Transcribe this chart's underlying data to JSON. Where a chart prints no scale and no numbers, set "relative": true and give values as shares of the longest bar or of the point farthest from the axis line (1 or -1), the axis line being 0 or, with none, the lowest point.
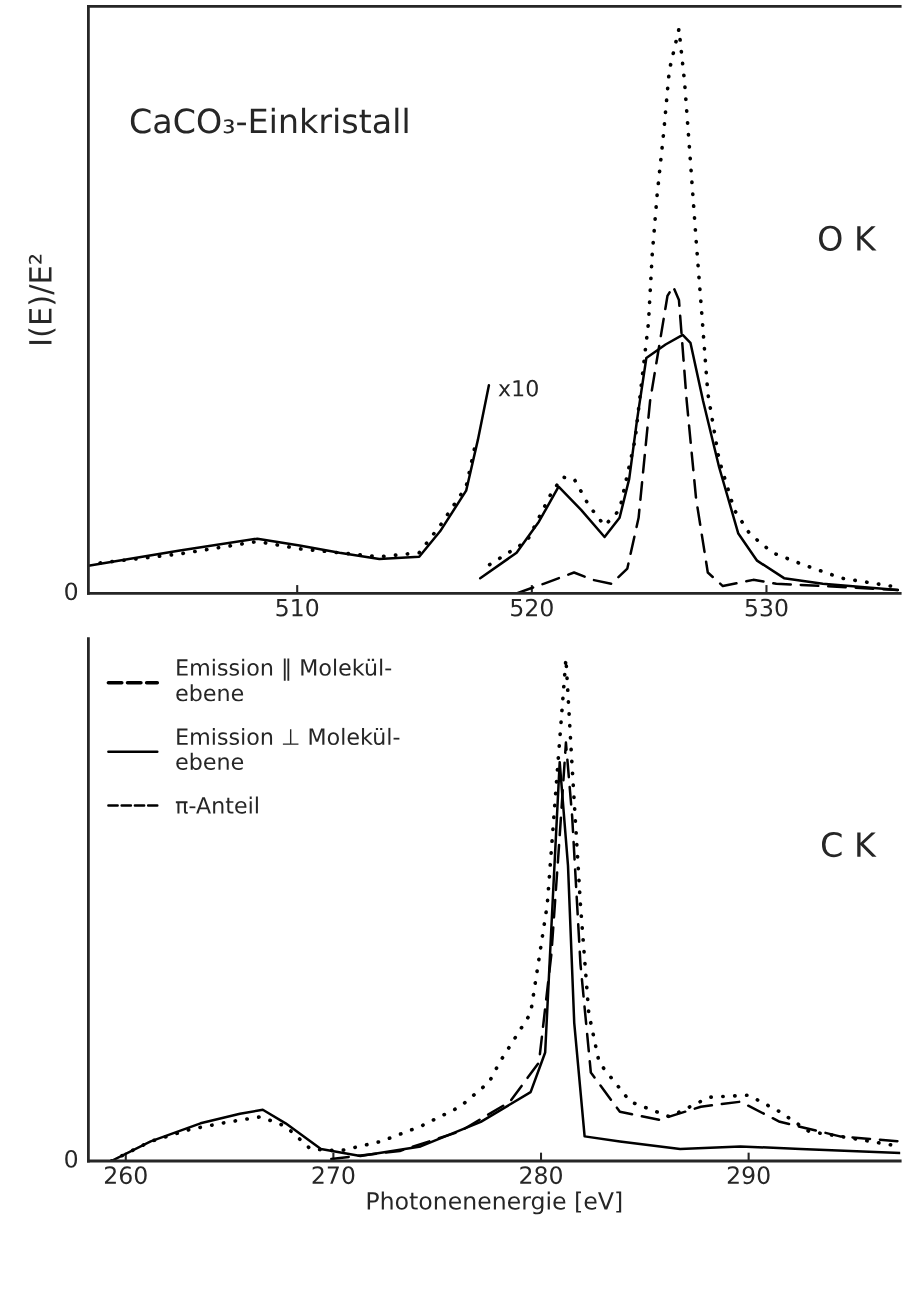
{
  "chart_data": [
    {
      "type": "line",
      "relative": true,
      "ylabel": "I(E)/E²",
      "xlim": [
        501.1,
        535.7
      ],
      "xticks": [
        510,
        520,
        530
      ],
      "grid": false,
      "legend": false,
      "annotations": [
        "CaCO₃-Einkristall",
        "O K",
        "0",
        {
          "text": "x10",
          "x": 518.2,
          "y": 0.36
        }
      ],
      "series": [
        {
          "color": "#000000",
          "line_style": "dotted",
          "x": [
            501.6,
            505.0,
            508.3,
            510.1,
            513.5,
            515.2,
            516.09,
            517.2,
            517.6
          ],
          "values": [
            0.054,
            0.07,
            0.092,
            0.079,
            0.065,
            0.072,
            0.12,
            0.189,
            0.265
          ]
        },
        {
          "color": "#000000",
          "line_style": "dotted",
          "x": [
            518.2,
            519.8,
            520.8,
            521.3,
            521.8,
            522.44,
            523.1,
            523.74,
            524.4,
            524.72,
            524.97,
            525.13,
            525.34,
            525.62,
            525.86,
            526.27,
            526.51,
            526.76,
            527.0,
            527.25,
            527.5,
            527.98,
            528.63,
            529.28,
            530.26,
            531.56,
            533.2,
            535.6
          ],
          "values": [
            0.051,
            0.093,
            0.175,
            0.206,
            0.203,
            0.155,
            0.12,
            0.148,
            0.272,
            0.389,
            0.479,
            0.6,
            0.706,
            0.817,
            0.927,
            1.0,
            0.906,
            0.765,
            0.627,
            0.492,
            0.355,
            0.237,
            0.148,
            0.106,
            0.072,
            0.051,
            0.027,
            0.011
          ]
        },
        {
          "color": "#000000",
          "line_style": "solid",
          "x": [
            501.1,
            505.0,
            508.3,
            510.1,
            511.8,
            513.5,
            515.2,
            516.09,
            517.2,
            517.7,
            518.17
          ],
          "values": [
            0.049,
            0.076,
            0.097,
            0.085,
            0.072,
            0.061,
            0.065,
            0.11,
            0.182,
            0.272,
            0.369
          ]
        },
        {
          "color": "#000000",
          "line_style": "solid",
          "x": [
            517.8,
            519.35,
            520.3,
            521.14,
            522.1,
            523.1,
            523.74,
            524.15,
            524.48,
            524.88,
            525.7,
            526.43,
            526.76,
            527.3,
            527.98,
            528.8,
            529.6,
            530.75,
            532.4,
            535.6
          ],
          "values": [
            0.027,
            0.072,
            0.127,
            0.189,
            0.148,
            0.1,
            0.134,
            0.203,
            0.306,
            0.417,
            0.441,
            0.458,
            0.444,
            0.341,
            0.224,
            0.106,
            0.058,
            0.027,
            0.017,
            0.006
          ]
        },
        {
          "color": "#000000",
          "line_style": "dashed",
          "x": [
            519.35,
            520.5,
            521.8,
            522.6,
            523.4,
            524.07,
            524.55,
            525.04,
            525.45,
            525.78,
            526.02,
            526.27,
            526.6,
            527.0,
            527.5,
            528.14,
            529.44,
            530.42,
            532.4,
            535.6
          ],
          "values": [
            0.0,
            0.017,
            0.037,
            0.024,
            0.017,
            0.044,
            0.134,
            0.341,
            0.444,
            0.527,
            0.544,
            0.52,
            0.341,
            0.168,
            0.037,
            0.013,
            0.024,
            0.017,
            0.013,
            0.006
          ]
        }
      ]
    },
    {
      "type": "line",
      "relative": true,
      "xlabel": "Photonenenergie [eV]",
      "xlim": [
        258.2,
        297.3
      ],
      "xticks": [
        260,
        270,
        280,
        290
      ],
      "grid": false,
      "legend": "top left",
      "annotations": [
        "C K",
        "0"
      ],
      "series": [
        {
          "name": "Emission ‖ Molekül-\nebene",
          "color": "#000000",
          "line_style": "dotted",
          "x": [
            259.3,
            261.2,
            263.1,
            265.0,
            266.5,
            267.7,
            268.9,
            270.3,
            272.3,
            274.2,
            276.1,
            277.5,
            278.0,
            279.5,
            280.3,
            280.8,
            281.2,
            281.5,
            281.9,
            282.3,
            282.8,
            284.3,
            286.2,
            288.1,
            290.0,
            291.5,
            292.9,
            295.3,
            297.3
          ],
          "values": [
            0.0,
            0.039,
            0.063,
            0.078,
            0.088,
            0.069,
            0.024,
            0.02,
            0.039,
            0.069,
            0.108,
            0.157,
            0.196,
            0.294,
            0.51,
            0.784,
            1.0,
            0.784,
            0.51,
            0.294,
            0.196,
            0.118,
            0.088,
            0.127,
            0.131,
            0.098,
            0.059,
            0.043,
            0.029
          ]
        },
        {
          "name": "Emission ⊥ Molekül-\nebene",
          "color": "#000000",
          "line_style": "solid",
          "x": [
            259.3,
            261.2,
            263.6,
            265.5,
            266.6,
            267.7,
            269.4,
            271.3,
            274.2,
            277.1,
            279.5,
            280.2,
            280.6,
            280.9,
            281.3,
            281.6,
            282.1,
            283.8,
            286.7,
            289.6,
            292.5,
            297.3
          ],
          "values": [
            0.0,
            0.039,
            0.075,
            0.094,
            0.102,
            0.075,
            0.024,
            0.01,
            0.029,
            0.078,
            0.137,
            0.216,
            0.549,
            0.794,
            0.588,
            0.275,
            0.049,
            0.039,
            0.024,
            0.029,
            0.024,
            0.016
          ]
        },
        {
          "name": "π-Anteil",
          "color": "#000000",
          "line_style": "dashed",
          "x": [
            269.9,
            273.2,
            276.1,
            278.5,
            279.9,
            280.5,
            280.9,
            281.2,
            281.5,
            281.9,
            282.4,
            283.8,
            285.7,
            287.7,
            289.6,
            291.5,
            294.4,
            297.3
          ],
          "values": [
            0.004,
            0.02,
            0.059,
            0.118,
            0.196,
            0.412,
            0.647,
            0.833,
            0.686,
            0.392,
            0.176,
            0.098,
            0.082,
            0.108,
            0.118,
            0.078,
            0.049,
            0.039
          ]
        }
      ]
    }
  ]
}
